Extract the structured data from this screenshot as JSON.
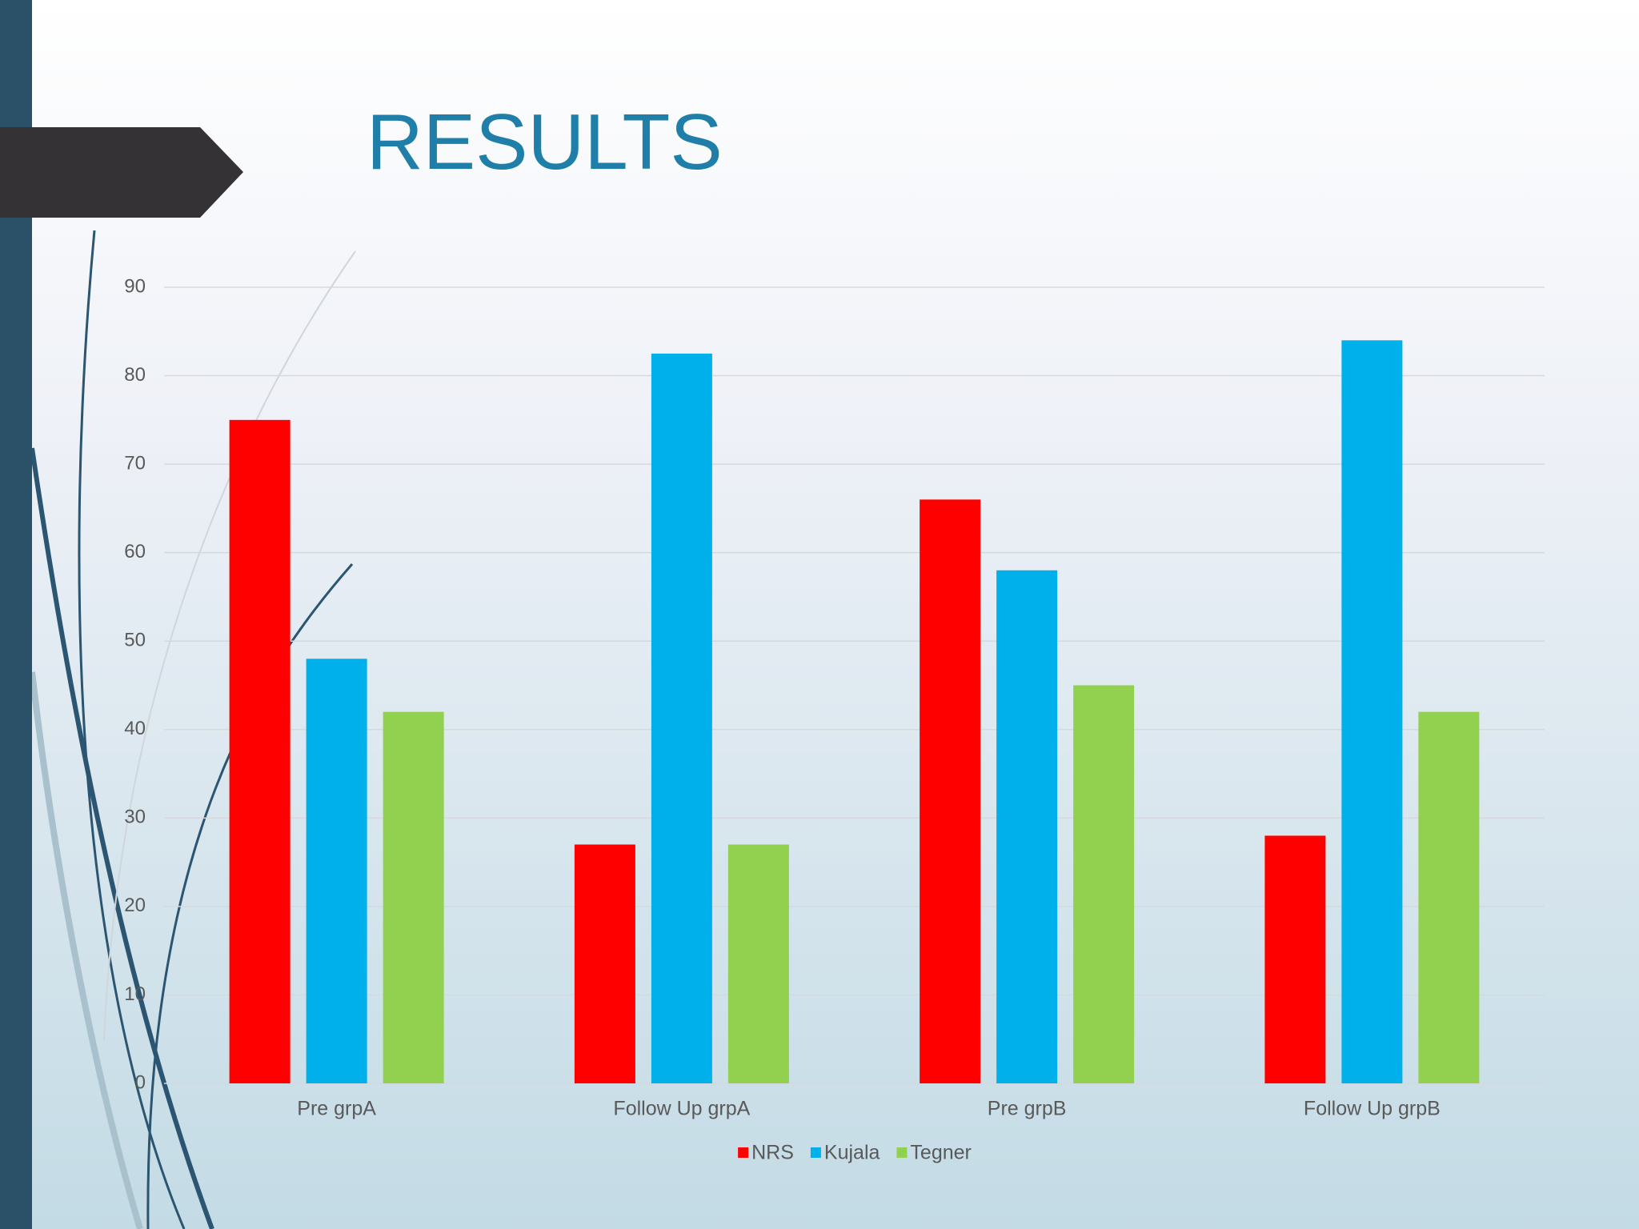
{
  "chart_data": {
    "type": "bar",
    "title": "RESULTS",
    "categories": [
      "Pre grpA",
      "Follow Up grpA",
      "Pre grpB",
      "Follow Up grpB"
    ],
    "series": [
      {
        "name": "NRS",
        "color": "#ff0000",
        "values": [
          75,
          27,
          66,
          28
        ]
      },
      {
        "name": "Kujala",
        "color": "#00b0ea",
        "values": [
          48,
          82.5,
          58,
          84
        ]
      },
      {
        "name": "Tegner",
        "color": "#92d050",
        "values": [
          42,
          27,
          45,
          42
        ]
      }
    ],
    "ylim": [
      0,
      90
    ],
    "yticks": [
      0,
      10,
      20,
      30,
      40,
      50,
      60,
      70,
      80,
      90
    ],
    "grid": true,
    "legend": "bottom"
  }
}
